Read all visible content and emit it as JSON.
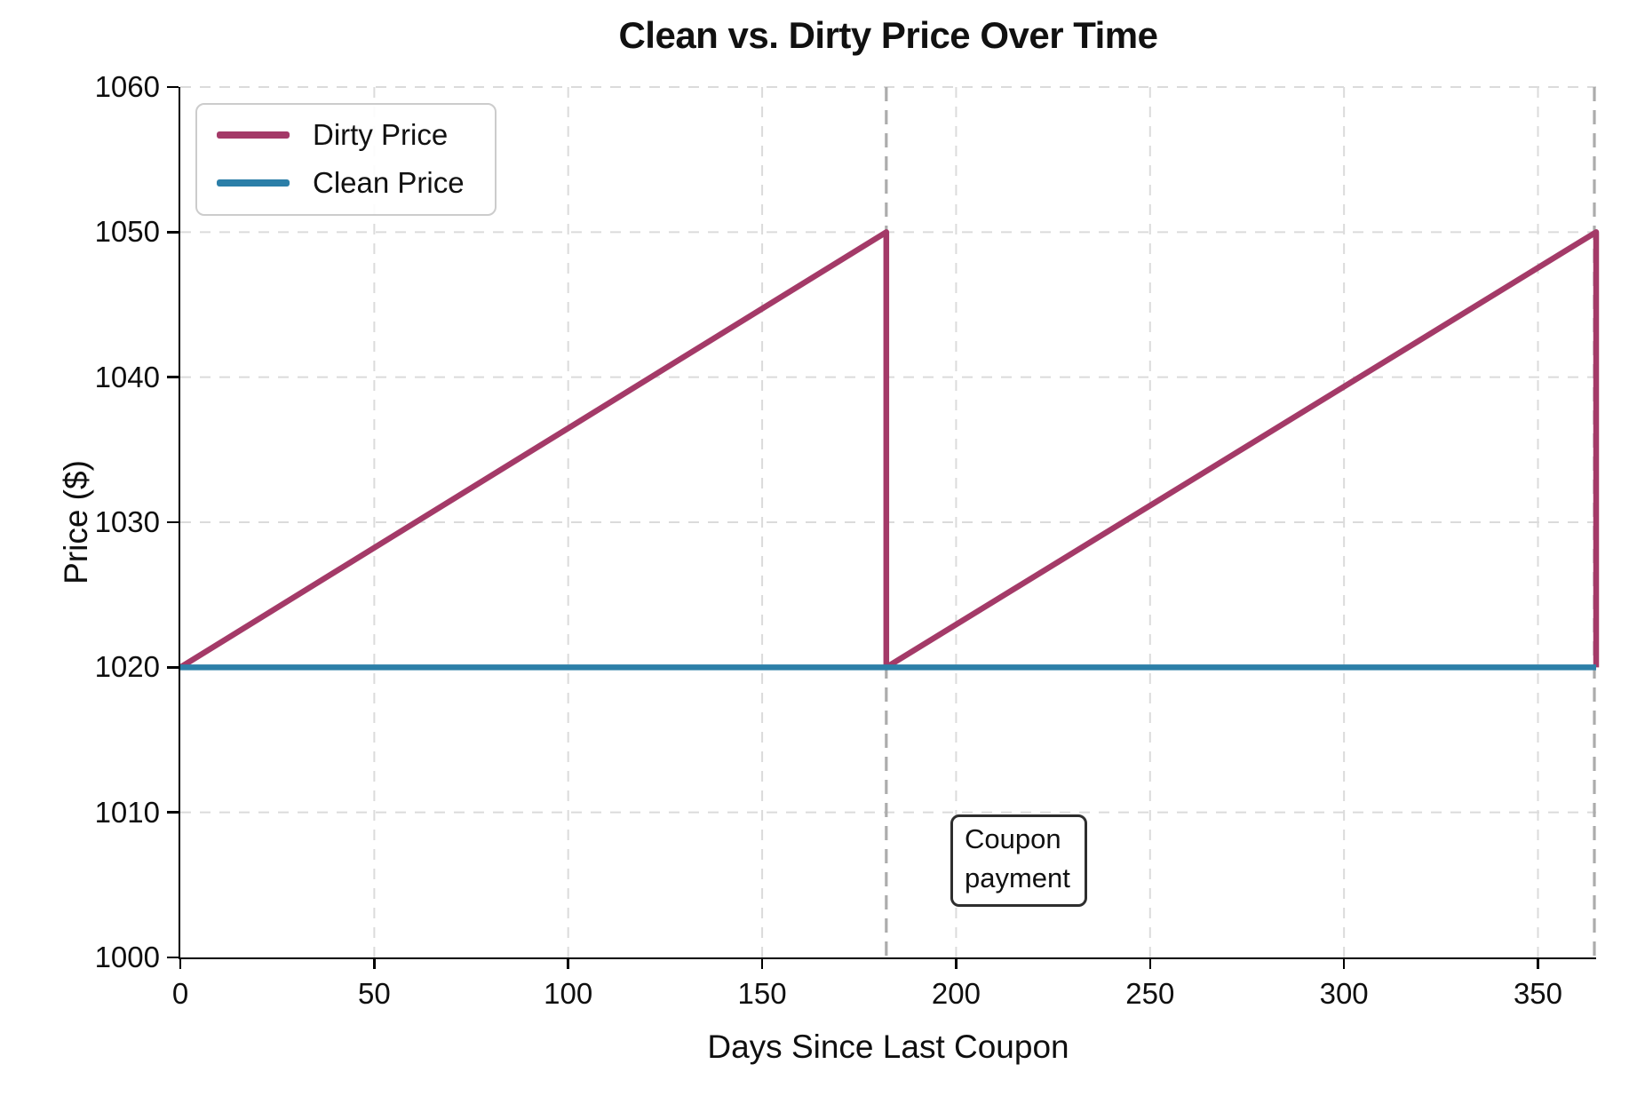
{
  "chart_data": {
    "type": "line",
    "title": "Clean vs. Dirty Price Over Time",
    "xlabel": "Days Since Last Coupon",
    "ylabel": "Price ($)",
    "xlim": [
      0,
      365
    ],
    "ylim": [
      1000,
      1060
    ],
    "xticks": [
      0,
      50,
      100,
      150,
      200,
      250,
      300,
      350
    ],
    "yticks": [
      1000,
      1010,
      1020,
      1030,
      1040,
      1050,
      1060
    ],
    "grid": true,
    "grid_style": "dashed",
    "legend_position": "upper-left",
    "series": [
      {
        "name": "Dirty Price",
        "color": "#A43A68",
        "x": [
          0,
          182,
          182,
          365,
          365
        ],
        "y": [
          1020,
          1050,
          1020,
          1050,
          1020
        ]
      },
      {
        "name": "Clean Price",
        "color": "#2C7FA8",
        "x": [
          0,
          365
        ],
        "y": [
          1020,
          1020
        ]
      }
    ],
    "coupon_payment_days": [
      182,
      365
    ],
    "annotation": {
      "text": "Coupon payment",
      "line1": "Coupon",
      "line2": "payment"
    }
  },
  "styles": {
    "grid_color": "#DBDBDB",
    "vline_color": "#ACACAC",
    "spine_color": "#000000",
    "text_color": "#0F0F0F"
  }
}
